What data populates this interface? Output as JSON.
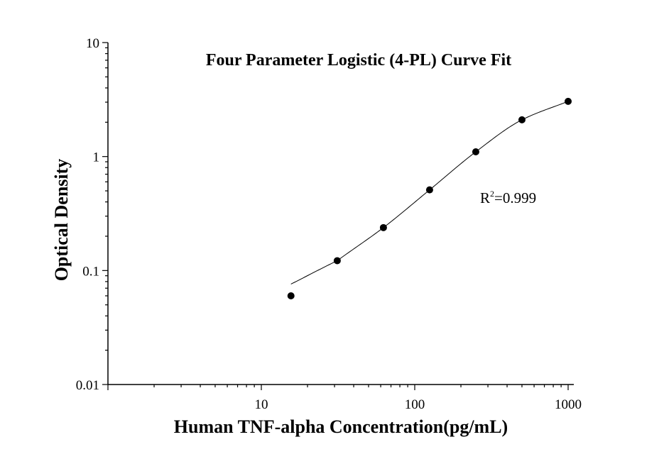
{
  "chart_data": {
    "type": "scatter",
    "title": "Four Parameter Logistic (4-PL) Curve Fit",
    "xlabel": "Human TNF-alpha Concentration(pg/mL)",
    "ylabel": "Optical Density",
    "xscale": "log",
    "yscale": "log",
    "xlim": [
      1,
      1000
    ],
    "ylim": [
      0.01,
      10
    ],
    "x_tick_labels": [
      "10",
      "100",
      "1000"
    ],
    "y_tick_labels": [
      "0.01",
      "0.1",
      "1",
      "10"
    ],
    "grid": false,
    "legend": "none",
    "series": [
      {
        "x": [
          15.6,
          31.25,
          62.5,
          125,
          250,
          500,
          1000
        ],
        "y": [
          0.06,
          0.122,
          0.238,
          0.51,
          1.1,
          2.1,
          3.05
        ]
      }
    ],
    "fit_curve": {
      "model": "4-PL",
      "x_start": 15.6,
      "x_end": 1000
    },
    "annotation": {
      "r2_symbol": "R",
      "r2_exponent": "2",
      "r2_value": "=0.999"
    },
    "colors": {
      "marker": "#000000",
      "line": "#000000",
      "background": "#ffffff"
    }
  }
}
